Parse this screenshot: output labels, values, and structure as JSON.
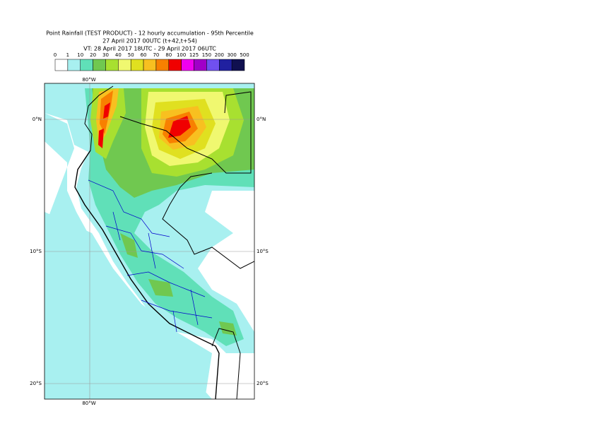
{
  "header": {
    "title": "Point Rainfall (TEST PRODUCT) - 12 hourly accumulation - 95th Percentile",
    "subtitle": "27 April 2017 00UTC (t+42,t+54)",
    "valid_time": "VT: 28 April 2017 18UTC - 29 April 2017 06UTC"
  },
  "legend": {
    "labels": [
      "0",
      "1",
      "10",
      "20",
      "30",
      "40",
      "50",
      "60",
      "70",
      "80",
      "100",
      "125",
      "150",
      "200",
      "300",
      "500"
    ],
    "colors": [
      "#ffffff",
      "#a8f0f0",
      "#60e0b8",
      "#70c850",
      "#a8e030",
      "#f0f870",
      "#e0e020",
      "#f8c020",
      "#f88000",
      "#f00000",
      "#f000f0",
      "#a000c8",
      "#7050f0",
      "#2020a0",
      "#101050"
    ]
  },
  "map": {
    "lon_labels": [
      "80°W",
      "80°W"
    ],
    "lat_labels": [
      "0°N",
      "0°N",
      "10°S",
      "10°S",
      "20°S",
      "20°S"
    ]
  }
}
